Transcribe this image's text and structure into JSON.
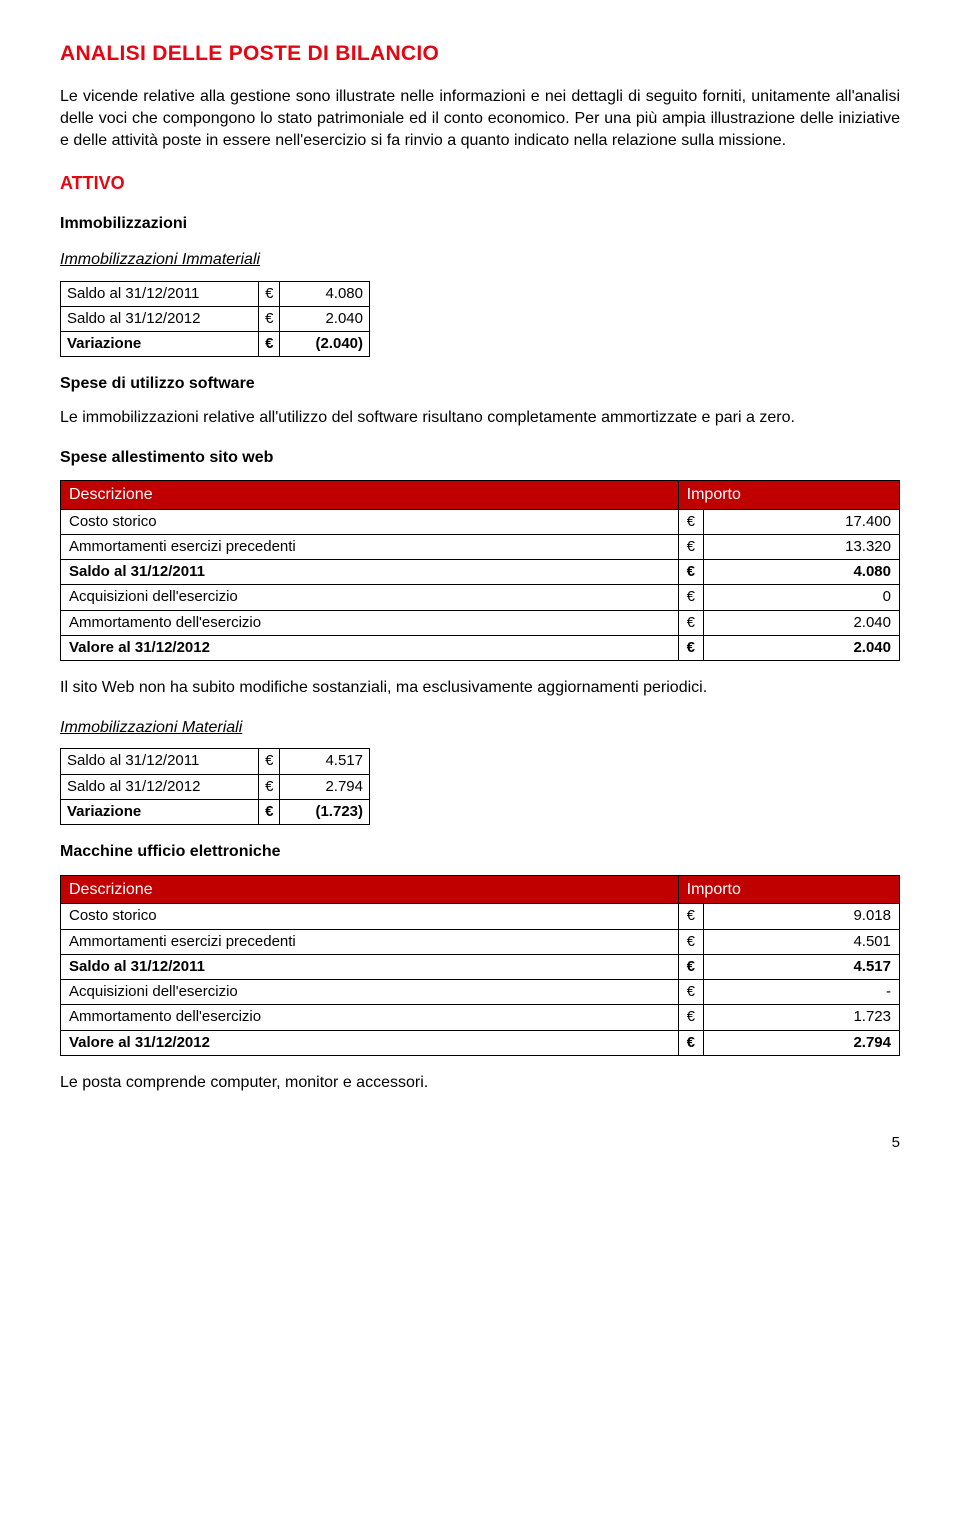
{
  "title": "ANALISI DELLE POSTE DI BILANCIO",
  "intro": "Le vicende relative alla gestione sono illustrate nelle informazioni e nei dettagli di seguito forniti, unitamente all'analisi delle voci che compongono lo stato patrimoniale ed il conto economico. Per una più ampia illustrazione delle iniziative e delle attività poste in essere nell'esercizio si fa rinvio a quanto indicato nella relazione sulla missione.",
  "attivo_heading": "ATTIVO",
  "immob_heading": "Immobilizzazioni",
  "immat_heading": "Immobilizzazioni Immateriali",
  "immat_table": {
    "rows": [
      {
        "label": "Saldo al 31/12/2011",
        "value": "4.080",
        "bold": false
      },
      {
        "label": "Saldo al 31/12/2012",
        "value": "2.040",
        "bold": false
      },
      {
        "label": "Variazione",
        "value": "(2.040)",
        "bold": true
      }
    ]
  },
  "software_heading": "Spese di utilizzo software",
  "software_text": "Le immobilizzazioni relative all'utilizzo del software risultano completamente ammortizzate e pari a zero.",
  "sito_heading": "Spese allestimento sito web",
  "table_headers": {
    "desc": "Descrizione",
    "amount": "Importo"
  },
  "sito_table": {
    "rows": [
      {
        "label": "Costo storico",
        "value": "17.400",
        "bold": false
      },
      {
        "label": "Ammortamenti esercizi precedenti",
        "value": "13.320",
        "bold": false
      },
      {
        "label": "Saldo al 31/12/2011",
        "value": "4.080",
        "bold": true
      },
      {
        "label": "Acquisizioni dell'esercizio",
        "value": "0",
        "bold": false
      },
      {
        "label": "Ammortamento dell'esercizio",
        "value": "2.040",
        "bold": false
      },
      {
        "label": "Valore al 31/12/2012",
        "value": "2.040",
        "bold": true
      }
    ]
  },
  "sito_text": "Il sito Web non ha subito modifiche sostanziali, ma esclusivamente aggiornamenti periodici.",
  "mat_heading": "Immobilizzazioni Materiali",
  "mat_table": {
    "rows": [
      {
        "label": "Saldo al 31/12/2011",
        "value": "4.517",
        "bold": false
      },
      {
        "label": "Saldo al 31/12/2012",
        "value": "2.794",
        "bold": false
      },
      {
        "label": "Variazione",
        "value": "(1.723)",
        "bold": true
      }
    ]
  },
  "macchine_heading": "Macchine ufficio elettroniche",
  "macchine_table": {
    "rows": [
      {
        "label": "Costo storico",
        "value": "9.018",
        "bold": false
      },
      {
        "label": "Ammortamenti esercizi precedenti",
        "value": "4.501",
        "bold": false
      },
      {
        "label": "Saldo al 31/12/2011",
        "value": "4.517",
        "bold": true
      },
      {
        "label": "Acquisizioni dell'esercizio",
        "value": "-",
        "bold": false
      },
      {
        "label": "Ammortamento dell'esercizio",
        "value": "1.723",
        "bold": false
      },
      {
        "label": "Valore al 31/12/2012",
        "value": "2.794",
        "bold": true
      }
    ]
  },
  "macchine_text": "Le posta comprende computer, monitor e accessori.",
  "euro": "€",
  "page_number": "5",
  "colors": {
    "accent_red": "#e30613",
    "table_header_bg": "#c00000",
    "table_header_fg": "#ffffff",
    "text": "#000000",
    "border": "#000000",
    "background": "#ffffff"
  }
}
